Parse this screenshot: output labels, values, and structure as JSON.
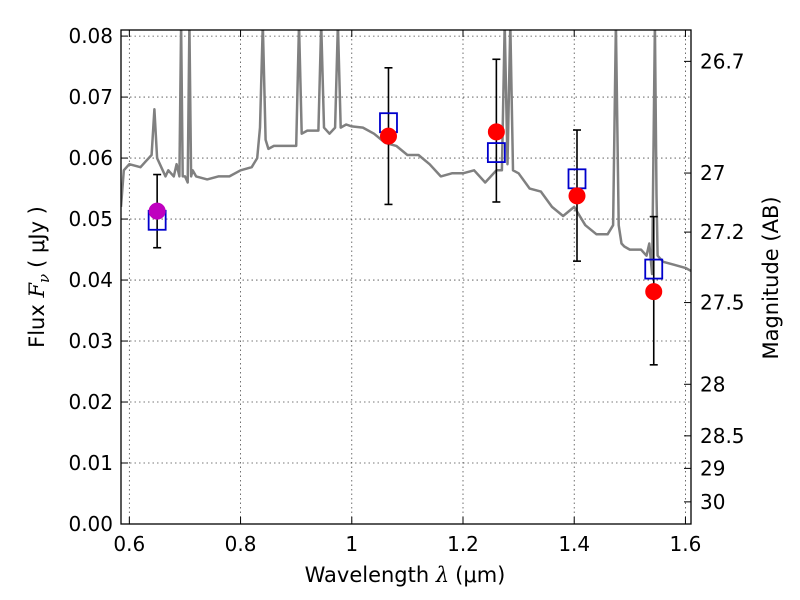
{
  "chart_data": {
    "type": "scatter",
    "xlabel_prefix": "Wavelength ",
    "xlabel_symbol": "λ",
    "xlabel_unit": "(μm)",
    "ylabel_prefix": "Flux ",
    "ylabel_symbol": "F",
    "ylabel_subscript": "ν",
    "ylabel_unit": "( μJy )",
    "y2label": "Magnitude (AB)",
    "xlim": [
      0.585,
      1.61
    ],
    "ylim": [
      0.0,
      0.081
    ],
    "x_ticks": [
      0.6,
      0.8,
      1.0,
      1.2,
      1.4,
      1.6
    ],
    "x_tick_labels": [
      "0.6",
      "0.8",
      "1",
      "1.2",
      "1.4",
      "1.6"
    ],
    "y_ticks": [
      0.0,
      0.01,
      0.02,
      0.03,
      0.04,
      0.05,
      0.06,
      0.07,
      0.08
    ],
    "y_tick_labels": [
      "0.00",
      "0.01",
      "0.02",
      "0.03",
      "0.04",
      "0.05",
      "0.06",
      "0.07",
      "0.08"
    ],
    "y2_ticks": [
      26.7,
      27,
      27.2,
      27.5,
      28,
      28.5,
      29,
      30
    ],
    "y2_tick_labels": [
      "26.7",
      "27",
      "27.2",
      "27.5",
      "28",
      "28.5",
      "29",
      "30"
    ],
    "grid": true,
    "colors": {
      "model": "#808080",
      "observed": "#ff0000",
      "observed_first": "#bf00bf",
      "model_band": "#0000cc",
      "errorbar": "#000000"
    },
    "series": [
      {
        "kind": "line",
        "x": [
          0.585,
          0.59,
          0.6,
          0.62,
          0.63,
          0.64,
          0.645,
          0.65,
          0.655,
          0.66,
          0.665,
          0.67,
          0.68,
          0.685,
          0.69,
          0.693,
          0.696,
          0.7,
          0.705,
          0.708,
          0.711,
          0.714,
          0.72,
          0.74,
          0.76,
          0.78,
          0.8,
          0.82,
          0.83,
          0.835,
          0.84,
          0.845,
          0.85,
          0.86,
          0.88,
          0.9,
          0.905,
          0.91,
          0.92,
          0.94,
          0.945,
          0.95,
          0.96,
          0.97,
          0.975,
          0.98,
          0.99,
          1.0,
          1.02,
          1.04,
          1.06,
          1.08,
          1.1,
          1.12,
          1.14,
          1.16,
          1.18,
          1.2,
          1.22,
          1.24,
          1.26,
          1.27,
          1.275,
          1.28,
          1.285,
          1.29,
          1.3,
          1.32,
          1.34,
          1.36,
          1.38,
          1.4,
          1.42,
          1.44,
          1.46,
          1.47,
          1.475,
          1.48,
          1.485,
          1.49,
          1.5,
          1.52,
          1.53,
          1.535,
          1.54,
          1.545,
          1.548,
          1.55,
          1.56,
          1.58,
          1.6,
          1.61
        ],
        "y": [
          0.052,
          0.058,
          0.059,
          0.0585,
          0.0595,
          0.0605,
          0.068,
          0.06,
          0.059,
          0.058,
          0.057,
          0.058,
          0.057,
          0.059,
          0.057,
          0.082,
          0.057,
          0.057,
          0.056,
          0.082,
          0.057,
          0.058,
          0.057,
          0.0565,
          0.057,
          0.057,
          0.058,
          0.0585,
          0.06,
          0.065,
          0.082,
          0.063,
          0.0615,
          0.062,
          0.062,
          0.062,
          0.082,
          0.064,
          0.0645,
          0.0645,
          0.082,
          0.065,
          0.064,
          0.065,
          0.082,
          0.065,
          0.0655,
          0.0652,
          0.065,
          0.064,
          0.0625,
          0.062,
          0.0605,
          0.0605,
          0.059,
          0.057,
          0.0575,
          0.0575,
          0.058,
          0.056,
          0.058,
          0.058,
          0.082,
          0.059,
          0.082,
          0.058,
          0.0575,
          0.055,
          0.0545,
          0.052,
          0.0505,
          0.052,
          0.049,
          0.0475,
          0.0475,
          0.049,
          0.082,
          0.049,
          0.046,
          0.0455,
          0.045,
          0.045,
          0.044,
          0.046,
          0.041,
          0.082,
          0.054,
          0.044,
          0.043,
          0.0425,
          0.042,
          0.0415
        ]
      },
      {
        "kind": "points_with_errorbars",
        "x": [
          0.65,
          1.066,
          1.26,
          1.405,
          1.543
        ],
        "y": [
          0.0513,
          0.0636,
          0.0643,
          0.0538,
          0.0381
        ],
        "yerr_low": [
          0.0453,
          0.0524,
          0.0528,
          0.0431,
          0.0261
        ],
        "yerr_high": [
          0.0573,
          0.0748,
          0.0762,
          0.0646,
          0.0504
        ]
      },
      {
        "kind": "open_squares",
        "x": [
          0.65,
          1.066,
          1.26,
          1.405,
          1.543
        ],
        "y": [
          0.0498,
          0.0658,
          0.0609,
          0.0566,
          0.0418
        ]
      }
    ]
  }
}
